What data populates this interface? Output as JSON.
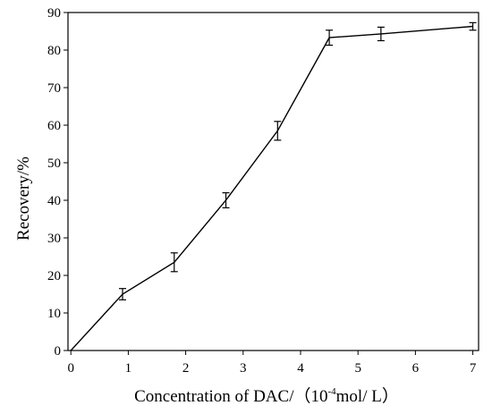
{
  "chart_data": {
    "type": "line",
    "xlabel_parts": [
      "Concentration of DAC/（10",
      "-4",
      "mol/ L）"
    ],
    "ylabel": "Recovery/%",
    "xlim": [
      -0.05,
      7.1
    ],
    "ylim": [
      0,
      90
    ],
    "x_ticks": [
      0,
      1,
      2,
      3,
      4,
      5,
      6,
      7
    ],
    "y_ticks": [
      0,
      10,
      20,
      30,
      40,
      50,
      60,
      70,
      80,
      90
    ],
    "grid": false,
    "series": [
      {
        "x": [
          0,
          0.9,
          1.8,
          2.7,
          3.6,
          4.5,
          5.4,
          7.0
        ],
        "y": [
          0,
          15,
          23.5,
          40,
          58.5,
          83.3,
          84.3,
          86.3
        ],
        "error": [
          0,
          1.5,
          2.5,
          2.0,
          2.5,
          2.0,
          1.8,
          1.0
        ]
      }
    ]
  }
}
